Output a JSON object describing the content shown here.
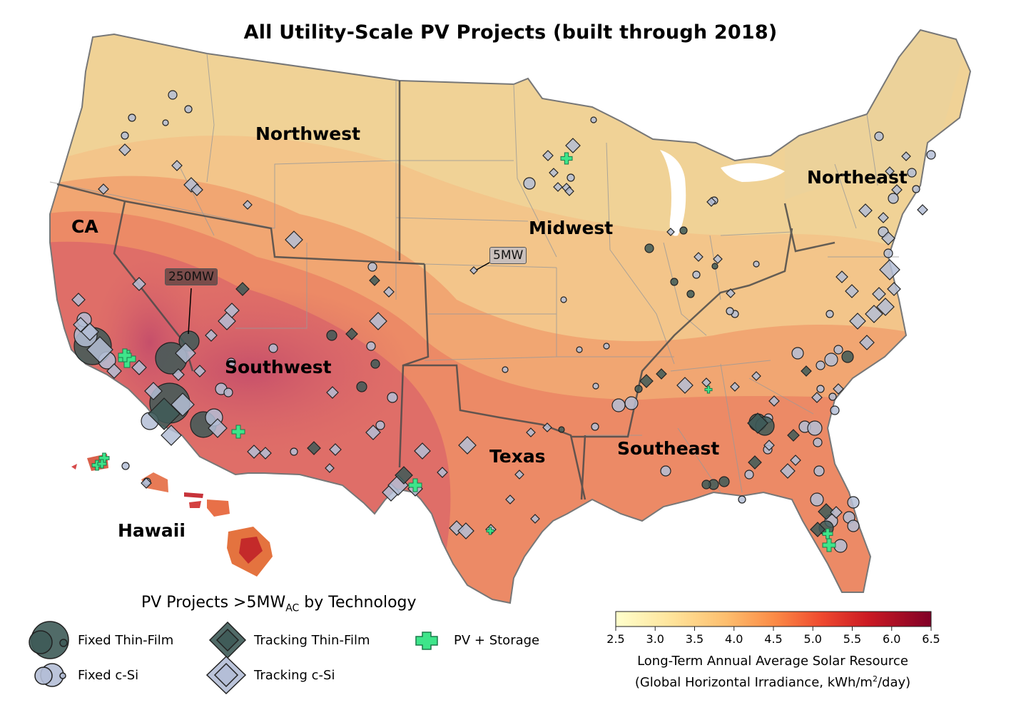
{
  "title": "All Utility-Scale PV Projects (built through 2018)",
  "regions": {
    "northwest": "Northwest",
    "ca": "CA",
    "southwest": "Southwest",
    "midwest": "Midwest",
    "northeast": "Northeast",
    "texas": "Texas",
    "southeast": "Southeast",
    "hawaii": "Hawaii"
  },
  "callouts": {
    "large": "250MW",
    "small": "5MW"
  },
  "legend": {
    "title_main": "PV Projects >5MW",
    "title_sub": "AC",
    "title_tail": " by Technology",
    "items": {
      "fixed_thin_film": "Fixed Thin-Film",
      "fixed_csi": "Fixed c-Si",
      "tracking_thin_film": "Tracking Thin-Film",
      "tracking_csi": "Tracking c-Si",
      "pv_storage": "PV + Storage"
    }
  },
  "colorbar": {
    "ticks": [
      "2.5",
      "3.0",
      "3.5",
      "4.0",
      "4.5",
      "5.0",
      "5.5",
      "6.0",
      "6.5"
    ],
    "range": [
      2.5,
      6.5
    ],
    "label_line1": "Long-Term Annual Average Solar Resource",
    "label_line2_a": "(Global Horizontal Irradiance, kWh/m",
    "label_line2_sup": "2",
    "label_line2_b": "/day)"
  },
  "colors": {
    "fixed_thin_film": "#3e5b58",
    "fixed_csi": "#b4bed6",
    "tracking_thin_film": "#3e5b58",
    "tracking_csi": "#b4bed6",
    "pv_storage": "#3ee58a",
    "resource_low": "#ffffcc",
    "resource_mid": "#f08c4a",
    "resource_high": "#800026"
  }
}
